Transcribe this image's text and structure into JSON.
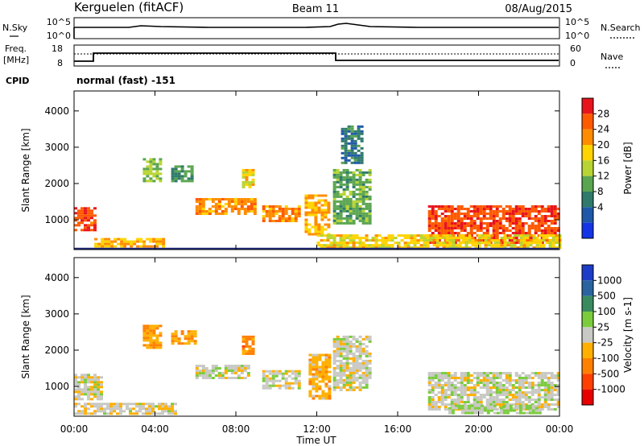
{
  "header": {
    "station": "Kerguelen (fitACF)",
    "beam": "Beam 11",
    "date": "08/Aug/2015"
  },
  "side_labels": {
    "nsky": "N.Sky",
    "nsearch": "N.Search",
    "freq": "Freq.",
    "freq_unit": "[MHz]",
    "nave": "Nave",
    "cpid": "CPID"
  },
  "cpid_text": "normal (fast) -151",
  "noise_axis": {
    "left_ticks": [
      "10^5",
      "10^0"
    ],
    "right_ticks": [
      "10^5",
      "10^0"
    ]
  },
  "freq_axis": {
    "left_ticks": [
      "18",
      "8"
    ],
    "right_ticks": [
      "60",
      "0"
    ]
  },
  "power_colorbar": {
    "label": "Power [dB]",
    "ticks": [
      "28",
      "24",
      "20",
      "16",
      "12",
      "8",
      "4"
    ],
    "colors": [
      "#e8141c",
      "#ff5a00",
      "#ff8c00",
      "#ffd400",
      "#b8d432",
      "#5aa550",
      "#2f7a6a",
      "#1f58a8",
      "#1434e6"
    ]
  },
  "velocity_colorbar": {
    "label": "Velocity [m s-1]",
    "ticks": [
      "1000",
      "500",
      "100",
      "25",
      "-25",
      "-100",
      "-500",
      "-1000"
    ],
    "colors": [
      "#1c3cc8",
      "#2a64a0",
      "#3a8a60",
      "#7acc3c",
      "#c8c8c4",
      "#ffb000",
      "#ff8000",
      "#ff4000",
      "#e80000"
    ]
  },
  "time_labels": [
    "00:00",
    "04:00",
    "08:00",
    "12:00",
    "16:00",
    "20:00",
    "00:00"
  ],
  "xlabel": "Time UT",
  "chart_data": [
    {
      "type": "heatmap",
      "title": "",
      "xlabel": "Time UT",
      "ylabel": "Slant Range [km]",
      "xlim": [
        0,
        24
      ],
      "ylim": [
        180,
        4550
      ],
      "yticks": [
        1000,
        2000,
        3000,
        4000
      ],
      "value_label": "Power [dB]",
      "value_range": [
        0,
        30
      ],
      "regions": [
        {
          "t": [
            0.0,
            1.0
          ],
          "r": [
            700,
            1350
          ],
          "level": 26
        },
        {
          "t": [
            1.0,
            4.5
          ],
          "r": [
            300,
            500
          ],
          "level": 20
        },
        {
          "t": [
            3.4,
            4.2
          ],
          "r": [
            2100,
            2700
          ],
          "level": 14
        },
        {
          "t": [
            4.8,
            5.8
          ],
          "r": [
            2100,
            2500
          ],
          "level": 10
        },
        {
          "t": [
            6.0,
            9.0
          ],
          "r": [
            1200,
            1600
          ],
          "level": 22
        },
        {
          "t": [
            8.3,
            8.9
          ],
          "r": [
            1900,
            2400
          ],
          "level": 18
        },
        {
          "t": [
            9.3,
            11.2
          ],
          "r": [
            950,
            1400
          ],
          "level": 22
        },
        {
          "t": [
            11.4,
            12.6
          ],
          "r": [
            600,
            1700
          ],
          "level": 20
        },
        {
          "t": [
            12.8,
            14.6
          ],
          "r": [
            900,
            2400
          ],
          "level": 12
        },
        {
          "t": [
            13.2,
            14.2
          ],
          "r": [
            2600,
            3600
          ],
          "level": 8
        },
        {
          "t": [
            17.5,
            24.0
          ],
          "r": [
            400,
            1400
          ],
          "level": 26
        },
        {
          "t": [
            12.0,
            24.0
          ],
          "r": [
            250,
            600
          ],
          "level": 18
        }
      ]
    },
    {
      "type": "heatmap",
      "title": "",
      "xlabel": "Time UT",
      "ylabel": "Slant Range [km]",
      "xlim": [
        0,
        24
      ],
      "ylim": [
        180,
        4550
      ],
      "yticks": [
        1000,
        2000,
        3000,
        4000
      ],
      "value_label": "Velocity [m s-1]",
      "value_range": [
        -1000,
        1000
      ],
      "regions": [
        {
          "t": [
            0.0,
            1.3
          ],
          "r": [
            650,
            1350
          ],
          "level": 0
        },
        {
          "t": [
            0.0,
            5.0
          ],
          "r": [
            250,
            550
          ],
          "level": -40
        },
        {
          "t": [
            3.4,
            4.2
          ],
          "r": [
            2100,
            2700
          ],
          "level": -300
        },
        {
          "t": [
            4.8,
            6.0
          ],
          "r": [
            2200,
            2550
          ],
          "level": -300
        },
        {
          "t": [
            6.0,
            8.6
          ],
          "r": [
            1250,
            1600
          ],
          "level": 0
        },
        {
          "t": [
            8.3,
            8.9
          ],
          "r": [
            1900,
            2400
          ],
          "level": -400
        },
        {
          "t": [
            9.3,
            11.2
          ],
          "r": [
            950,
            1450
          ],
          "level": 0
        },
        {
          "t": [
            11.6,
            12.6
          ],
          "r": [
            700,
            1900
          ],
          "level": -250
        },
        {
          "t": [
            12.8,
            14.6
          ],
          "r": [
            900,
            2400
          ],
          "level": 0
        },
        {
          "t": [
            17.5,
            24.0
          ],
          "r": [
            400,
            1400
          ],
          "level": 0
        },
        {
          "t": [
            18.5,
            23.0
          ],
          "r": [
            250,
            500
          ],
          "level": 120
        }
      ]
    }
  ]
}
